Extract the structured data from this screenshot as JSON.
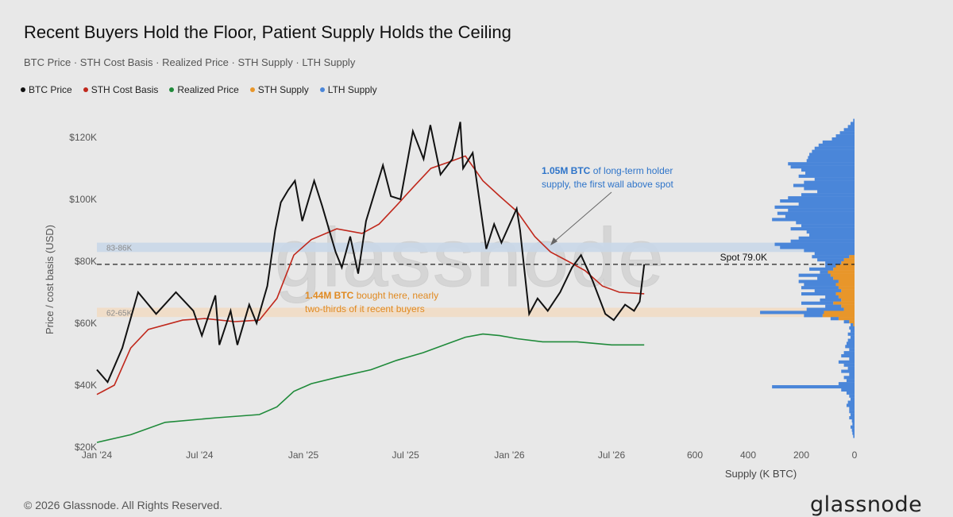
{
  "header": {
    "title": "Recent Buyers Hold the Floor, Patient Supply Holds the Ceiling",
    "subtitle": "BTC Price · STH Cost Basis · Realized Price · STH Supply · LTH Supply"
  },
  "footer": {
    "copyright": "© 2026 Glassnode. All Rights Reserved.",
    "brand": "glassnode",
    "watermark": "glassnode"
  },
  "colors": {
    "btc": "#111111",
    "sth": "#c0281c",
    "realized": "#1f8a3a",
    "sth_supply": "#e8962a",
    "lth_supply": "#4a86d9",
    "upper_band": "#c9d7e8",
    "lower_band": "#f1dcc4"
  },
  "chart_data": [
    {
      "type": "line",
      "ylabel": "Price / cost basis (USD)",
      "x_ticks": [
        "Jan '24",
        "Jul '24",
        "Jan '25",
        "Jul '25",
        "Jan '26",
        "Jul '26"
      ],
      "y_ticks": [
        "$20K",
        "$40K",
        "$60K",
        "$80K",
        "$100K",
        "$120K"
      ],
      "ylim": [
        20000,
        120000
      ],
      "legend": [
        {
          "name": "BTC Price",
          "color": "#111111"
        },
        {
          "name": "STH Cost Basis",
          "color": "#c0281c"
        },
        {
          "name": "Realized Price",
          "color": "#1f8a3a"
        },
        {
          "name": "STH Supply",
          "color": "#e8962a"
        },
        {
          "name": "LTH Supply",
          "color": "#4a86d9"
        }
      ],
      "series": [
        {
          "name": "BTC Price",
          "values": [
            [
              "2024-01-01",
              45000
            ],
            [
              "2024-01-20",
              41000
            ],
            [
              "2024-02-15",
              52000
            ],
            [
              "2024-03-14",
              70000
            ],
            [
              "2024-04-15",
              63000
            ],
            [
              "2024-05-20",
              70000
            ],
            [
              "2024-06-20",
              64000
            ],
            [
              "2024-07-05",
              56000
            ],
            [
              "2024-07-29",
              69000
            ],
            [
              "2024-08-05",
              53000
            ],
            [
              "2024-08-25",
              64000
            ],
            [
              "2024-09-06",
              53000
            ],
            [
              "2024-09-27",
              66000
            ],
            [
              "2024-10-10",
              60000
            ],
            [
              "2024-10-29",
              72000
            ],
            [
              "2024-11-12",
              90000
            ],
            [
              "2024-11-22",
              99000
            ],
            [
              "2024-12-05",
              103000
            ],
            [
              "2024-12-17",
              106000
            ],
            [
              "2024-12-30",
              93000
            ],
            [
              "2025-01-20",
              106000
            ],
            [
              "2025-02-03",
              98000
            ],
            [
              "2025-02-27",
              83000
            ],
            [
              "2025-03-10",
              78000
            ],
            [
              "2025-03-25",
              88000
            ],
            [
              "2025-04-08",
              76000
            ],
            [
              "2025-04-22",
              93000
            ],
            [
              "2025-05-22",
              111000
            ],
            [
              "2025-06-05",
              101000
            ],
            [
              "2025-06-22",
              100000
            ],
            [
              "2025-07-14",
              122000
            ],
            [
              "2025-08-02",
              113000
            ],
            [
              "2025-08-14",
              124000
            ],
            [
              "2025-09-01",
              108000
            ],
            [
              "2025-09-22",
              113000
            ],
            [
              "2025-10-06",
              125000
            ],
            [
              "2025-10-11",
              110000
            ],
            [
              "2025-10-28",
              115000
            ],
            [
              "2025-11-21",
              84000
            ],
            [
              "2025-12-05",
              92000
            ],
            [
              "2025-12-18",
              86000
            ],
            [
              "2026-01-14",
              97000
            ],
            [
              "2026-01-20",
              90000
            ],
            [
              "2026-02-05",
              63000
            ],
            [
              "2026-02-20",
              68000
            ],
            [
              "2026-03-10",
              64000
            ],
            [
              "2026-04-01",
              70000
            ],
            [
              "2026-04-22",
              78000
            ],
            [
              "2026-05-08",
              82000
            ],
            [
              "2026-05-28",
              74000
            ],
            [
              "2026-06-20",
              63000
            ],
            [
              "2026-07-05",
              61000
            ],
            [
              "2026-07-25",
              66000
            ],
            [
              "2026-08-10",
              64000
            ],
            [
              "2026-08-20",
              67000
            ],
            [
              "2026-08-28",
              79000
            ]
          ]
        },
        {
          "name": "STH Cost Basis",
          "values": [
            [
              "2024-01-01",
              37000
            ],
            [
              "2024-02-01",
              40000
            ],
            [
              "2024-03-01",
              52000
            ],
            [
              "2024-04-01",
              58000
            ],
            [
              "2024-06-01",
              61000
            ],
            [
              "2024-07-10",
              61500
            ],
            [
              "2024-09-01",
              60500
            ],
            [
              "2024-10-15",
              61000
            ],
            [
              "2024-11-15",
              68000
            ],
            [
              "2024-12-15",
              82000
            ],
            [
              "2025-01-15",
              87000
            ],
            [
              "2025-03-01",
              90500
            ],
            [
              "2025-04-15",
              89000
            ],
            [
              "2025-05-15",
              92000
            ],
            [
              "2025-06-15",
              98000
            ],
            [
              "2025-07-15",
              104000
            ],
            [
              "2025-08-15",
              110000
            ],
            [
              "2025-09-15",
              112000
            ],
            [
              "2025-10-15",
              114000
            ],
            [
              "2025-11-15",
              106000
            ],
            [
              "2025-12-15",
              101000
            ],
            [
              "2026-01-15",
              96000
            ],
            [
              "2026-02-15",
              88000
            ],
            [
              "2026-03-15",
              83000
            ],
            [
              "2026-04-15",
              80000
            ],
            [
              "2026-05-15",
              77000
            ],
            [
              "2026-06-15",
              72000
            ],
            [
              "2026-07-15",
              70000
            ],
            [
              "2026-08-28",
              69500
            ]
          ]
        },
        {
          "name": "Realized Price",
          "values": [
            [
              "2024-01-01",
              21500
            ],
            [
              "2024-03-01",
              24000
            ],
            [
              "2024-05-01",
              28000
            ],
            [
              "2024-08-01",
              29500
            ],
            [
              "2024-10-15",
              30500
            ],
            [
              "2024-11-15",
              33000
            ],
            [
              "2024-12-15",
              38000
            ],
            [
              "2025-01-15",
              40500
            ],
            [
              "2025-03-01",
              42500
            ],
            [
              "2025-05-01",
              45000
            ],
            [
              "2025-06-15",
              48000
            ],
            [
              "2025-08-01",
              50500
            ],
            [
              "2025-09-15",
              53500
            ],
            [
              "2025-10-15",
              55500
            ],
            [
              "2025-11-15",
              56500
            ],
            [
              "2025-12-15",
              56000
            ],
            [
              "2026-01-15",
              55000
            ],
            [
              "2026-03-01",
              54000
            ],
            [
              "2026-05-01",
              54000
            ],
            [
              "2026-07-01",
              53000
            ],
            [
              "2026-08-28",
              53000
            ]
          ]
        }
      ],
      "annotations": [
        {
          "text": "Spot 79.0K",
          "y": 79000
        },
        {
          "bold": "1.05M BTC",
          "text": " of long-term holder",
          "text2": "supply, the first wall above spot",
          "color": "#2e74c9"
        },
        {
          "bold": "1.44M BTC",
          "text": " bought here, nearly",
          "text2": "two-thirds of it recent buyers",
          "color": "#e08a22"
        }
      ],
      "bands": [
        {
          "label": "83-86K",
          "range": [
            83000,
            86000
          ]
        },
        {
          "label": "62-65K",
          "range": [
            62000,
            65000
          ]
        }
      ]
    },
    {
      "type": "bar",
      "orientation": "horizontal",
      "xlabel": "Supply (K BTC)",
      "x_ticks": [
        "600",
        "400",
        "200",
        "0"
      ],
      "xlim": [
        600,
        0
      ],
      "price_bins": [
        {
          "price": 125500,
          "lth": 5,
          "sth": 0
        },
        {
          "price": 124500,
          "lth": 15,
          "sth": 0
        },
        {
          "price": 123500,
          "lth": 25,
          "sth": 0
        },
        {
          "price": 122500,
          "lth": 40,
          "sth": 0
        },
        {
          "price": 121500,
          "lth": 55,
          "sth": 0
        },
        {
          "price": 120500,
          "lth": 70,
          "sth": 0
        },
        {
          "price": 119500,
          "lth": 85,
          "sth": 0
        },
        {
          "price": 118500,
          "lth": 120,
          "sth": 0
        },
        {
          "price": 117500,
          "lth": 135,
          "sth": 0
        },
        {
          "price": 116500,
          "lth": 150,
          "sth": 0
        },
        {
          "price": 115500,
          "lth": 160,
          "sth": 0
        },
        {
          "price": 114500,
          "lth": 170,
          "sth": 0
        },
        {
          "price": 113500,
          "lth": 175,
          "sth": 0
        },
        {
          "price": 112500,
          "lth": 180,
          "sth": 0
        },
        {
          "price": 111500,
          "lth": 250,
          "sth": 0
        },
        {
          "price": 110500,
          "lth": 240,
          "sth": 0
        },
        {
          "price": 109500,
          "lth": 200,
          "sth": 0
        },
        {
          "price": 108500,
          "lth": 185,
          "sth": 0
        },
        {
          "price": 107500,
          "lth": 210,
          "sth": 0
        },
        {
          "price": 106500,
          "lth": 150,
          "sth": 0
        },
        {
          "price": 105500,
          "lth": 190,
          "sth": 0
        },
        {
          "price": 104500,
          "lth": 230,
          "sth": 0
        },
        {
          "price": 103500,
          "lth": 190,
          "sth": 0
        },
        {
          "price": 102500,
          "lth": 140,
          "sth": 0
        },
        {
          "price": 101500,
          "lth": 200,
          "sth": 0
        },
        {
          "price": 100500,
          "lth": 250,
          "sth": 0
        },
        {
          "price": 99500,
          "lth": 280,
          "sth": 0
        },
        {
          "price": 98500,
          "lth": 210,
          "sth": 0
        },
        {
          "price": 97500,
          "lth": 300,
          "sth": 0
        },
        {
          "price": 96500,
          "lth": 250,
          "sth": 0
        },
        {
          "price": 95500,
          "lth": 290,
          "sth": 0
        },
        {
          "price": 94500,
          "lth": 260,
          "sth": 0
        },
        {
          "price": 93500,
          "lth": 310,
          "sth": 0
        },
        {
          "price": 92500,
          "lth": 220,
          "sth": 0
        },
        {
          "price": 91500,
          "lth": 200,
          "sth": 0
        },
        {
          "price": 90500,
          "lth": 240,
          "sth": 0
        },
        {
          "price": 89500,
          "lth": 180,
          "sth": 0
        },
        {
          "price": 88500,
          "lth": 170,
          "sth": 0
        },
        {
          "price": 87500,
          "lth": 210,
          "sth": 0
        },
        {
          "price": 86500,
          "lth": 240,
          "sth": 0
        },
        {
          "price": 85500,
          "lth": 300,
          "sth": 0
        },
        {
          "price": 84500,
          "lth": 280,
          "sth": 0
        },
        {
          "price": 83500,
          "lth": 190,
          "sth": 0
        },
        {
          "price": 82500,
          "lth": 150,
          "sth": 0
        },
        {
          "price": 81500,
          "lth": 140,
          "sth": 20
        },
        {
          "price": 80500,
          "lth": 100,
          "sth": 40
        },
        {
          "price": 79500,
          "lth": 60,
          "sth": 50
        },
        {
          "price": 78500,
          "lth": 40,
          "sth": 70
        },
        {
          "price": 77500,
          "lth": 90,
          "sth": 80
        },
        {
          "price": 76500,
          "lth": 30,
          "sth": 100
        },
        {
          "price": 75500,
          "lth": 120,
          "sth": 90
        },
        {
          "price": 74500,
          "lth": 60,
          "sth": 80
        },
        {
          "price": 73500,
          "lth": 150,
          "sth": 60
        },
        {
          "price": 72500,
          "lth": 120,
          "sth": 70
        },
        {
          "price": 71500,
          "lth": 140,
          "sth": 60
        },
        {
          "price": 70500,
          "lth": 100,
          "sth": 50
        },
        {
          "price": 69500,
          "lth": 130,
          "sth": 70
        },
        {
          "price": 68500,
          "lth": 50,
          "sth": 60
        },
        {
          "price": 67500,
          "lth": 80,
          "sth": 50
        },
        {
          "price": 66500,
          "lth": 120,
          "sth": 80
        },
        {
          "price": 65500,
          "lth": 60,
          "sth": 50
        },
        {
          "price": 64500,
          "lth": 140,
          "sth": 40
        },
        {
          "price": 63500,
          "lth": 240,
          "sth": 115
        },
        {
          "price": 62500,
          "lth": 70,
          "sth": 120
        },
        {
          "price": 61500,
          "lth": 30,
          "sth": 60
        },
        {
          "price": 60500,
          "lth": 20,
          "sth": 20
        },
        {
          "price": 59500,
          "lth": 10,
          "sth": 5
        },
        {
          "price": 58500,
          "lth": 20,
          "sth": 0
        },
        {
          "price": 57500,
          "lth": 15,
          "sth": 0
        },
        {
          "price": 56500,
          "lth": 25,
          "sth": 0
        },
        {
          "price": 55500,
          "lth": 15,
          "sth": 0
        },
        {
          "price": 54500,
          "lth": 25,
          "sth": 0
        },
        {
          "price": 53500,
          "lth": 30,
          "sth": 0
        },
        {
          "price": 52500,
          "lth": 35,
          "sth": 0
        },
        {
          "price": 51500,
          "lth": 20,
          "sth": 0
        },
        {
          "price": 50500,
          "lth": 40,
          "sth": 0
        },
        {
          "price": 49500,
          "lth": 50,
          "sth": 0
        },
        {
          "price": 48500,
          "lth": 20,
          "sth": 0
        },
        {
          "price": 47500,
          "lth": 60,
          "sth": 0
        },
        {
          "price": 46500,
          "lth": 40,
          "sth": 0
        },
        {
          "price": 45500,
          "lth": 25,
          "sth": 0
        },
        {
          "price": 44500,
          "lth": 50,
          "sth": 0
        },
        {
          "price": 43500,
          "lth": 20,
          "sth": 0
        },
        {
          "price": 42500,
          "lth": 40,
          "sth": 0
        },
        {
          "price": 41500,
          "lth": 30,
          "sth": 0
        },
        {
          "price": 40500,
          "lth": 60,
          "sth": 0
        },
        {
          "price": 39500,
          "lth": 310,
          "sth": 0
        },
        {
          "price": 38500,
          "lth": 50,
          "sth": 0
        },
        {
          "price": 37500,
          "lth": 30,
          "sth": 0
        },
        {
          "price": 36500,
          "lth": 20,
          "sth": 0
        },
        {
          "price": 35500,
          "lth": 15,
          "sth": 0
        },
        {
          "price": 34500,
          "lth": 25,
          "sth": 0
        },
        {
          "price": 33500,
          "lth": 30,
          "sth": 0
        },
        {
          "price": 32500,
          "lth": 20,
          "sth": 0
        },
        {
          "price": 31500,
          "lth": 20,
          "sth": 0
        },
        {
          "price": 30500,
          "lth": 15,
          "sth": 0
        },
        {
          "price": 29500,
          "lth": 20,
          "sth": 0
        },
        {
          "price": 28500,
          "lth": 10,
          "sth": 0
        },
        {
          "price": 27500,
          "lth": 8,
          "sth": 0
        },
        {
          "price": 26500,
          "lth": 15,
          "sth": 0
        },
        {
          "price": 25500,
          "lth": 10,
          "sth": 0
        },
        {
          "price": 24500,
          "lth": 8,
          "sth": 0
        },
        {
          "price": 23500,
          "lth": 5,
          "sth": 0
        }
      ]
    }
  ]
}
